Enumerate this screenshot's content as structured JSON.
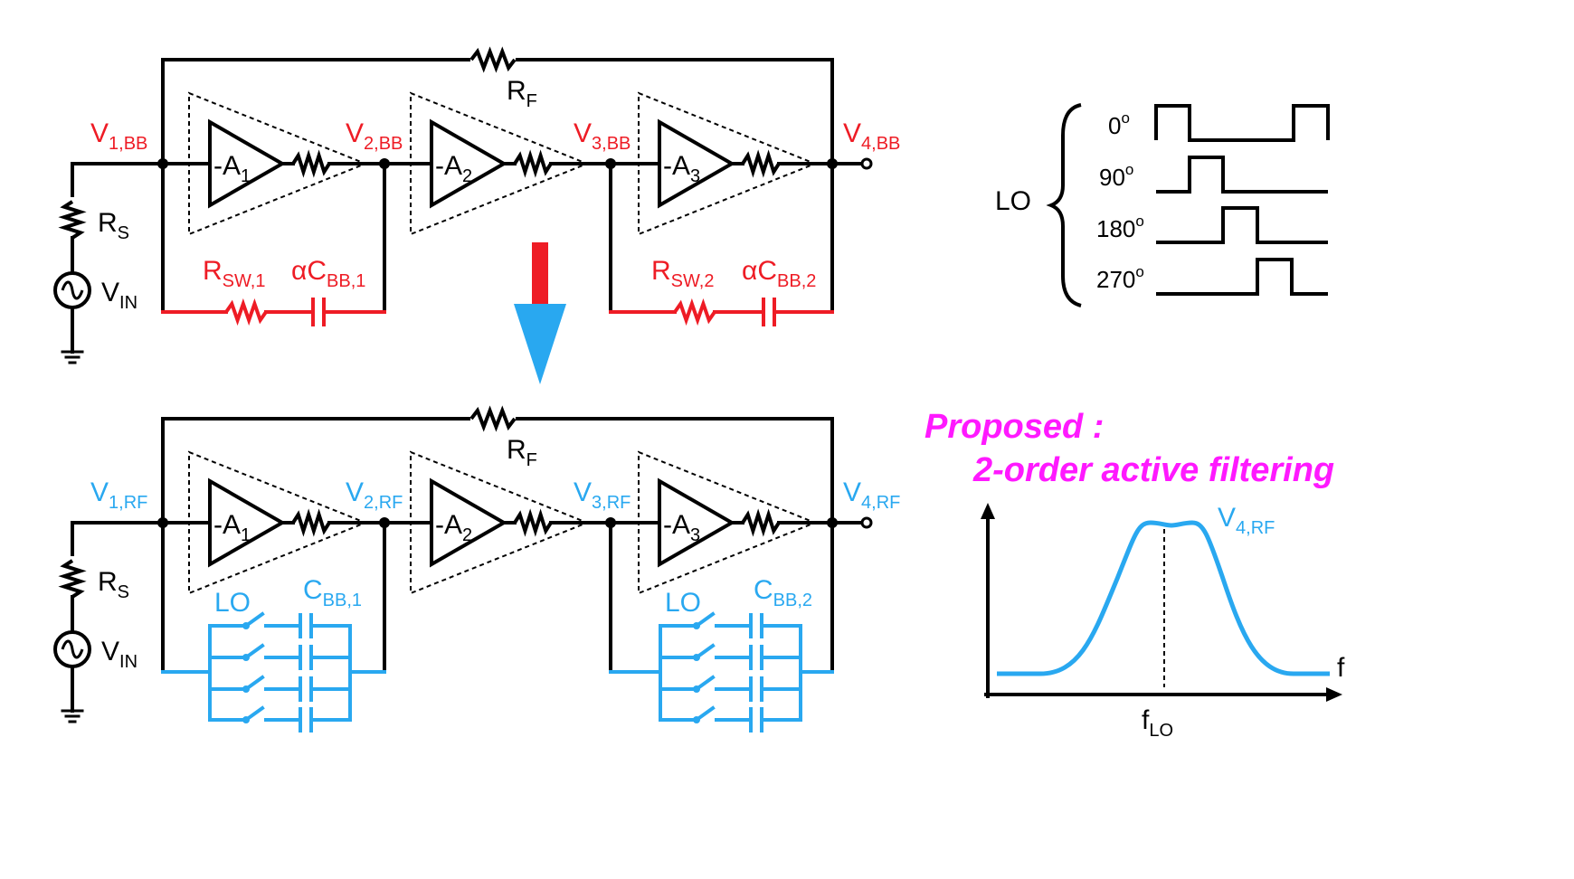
{
  "colors": {
    "black": "#000000",
    "red": "#ee1c25",
    "blue": "#29a8f0",
    "magenta": "#ff19ff"
  },
  "top_circuit": {
    "feedback_resistor": {
      "main": "R",
      "sub": "F"
    },
    "nodes": [
      {
        "main": "V",
        "sub": "1,BB"
      },
      {
        "main": "V",
        "sub": "2,BB"
      },
      {
        "main": "V",
        "sub": "3,BB"
      },
      {
        "main": "V",
        "sub": "4,BB"
      }
    ],
    "amplifiers": [
      {
        "main": "-A",
        "sub": "1"
      },
      {
        "main": "-A",
        "sub": "2"
      },
      {
        "main": "-A",
        "sub": "3"
      }
    ],
    "source_resistor": {
      "main": "R",
      "sub": "S"
    },
    "source": {
      "main": "V",
      "sub": "IN"
    },
    "switch_resistors": [
      {
        "main": "R",
        "sub": "SW,1"
      },
      {
        "main": "R",
        "sub": "SW,2"
      }
    ],
    "capacitors": [
      {
        "main": "αC",
        "sub": "BB,1"
      },
      {
        "main": "αC",
        "sub": "BB,2"
      }
    ]
  },
  "bottom_circuit": {
    "feedback_resistor": {
      "main": "R",
      "sub": "F"
    },
    "nodes": [
      {
        "main": "V",
        "sub": "1,RF"
      },
      {
        "main": "V",
        "sub": "2,RF"
      },
      {
        "main": "V",
        "sub": "3,RF"
      },
      {
        "main": "V",
        "sub": "4,RF"
      }
    ],
    "amplifiers": [
      {
        "main": "-A",
        "sub": "1"
      },
      {
        "main": "-A",
        "sub": "2"
      },
      {
        "main": "-A",
        "sub": "3"
      }
    ],
    "source_resistor": {
      "main": "R",
      "sub": "S"
    },
    "source": {
      "main": "V",
      "sub": "IN"
    },
    "switch_labels": [
      "LO",
      "LO"
    ],
    "capacitors": [
      {
        "main": "C",
        "sub": "BB,1"
      },
      {
        "main": "C",
        "sub": "BB,2"
      }
    ]
  },
  "lo_waveforms": {
    "label": "LO",
    "phases": [
      {
        "deg": "0",
        "sup": "o"
      },
      {
        "deg": "90",
        "sup": "o"
      },
      {
        "deg": "180",
        "sup": "o"
      },
      {
        "deg": "270",
        "sup": "o"
      }
    ]
  },
  "proposed": {
    "line1": "Proposed :",
    "line2": "2-order active filtering"
  },
  "response_plot": {
    "trace_label": {
      "main": "V",
      "sub": "4,RF"
    },
    "x_axis_label": "f",
    "center_label": {
      "main": "f",
      "sub": "LO"
    }
  }
}
